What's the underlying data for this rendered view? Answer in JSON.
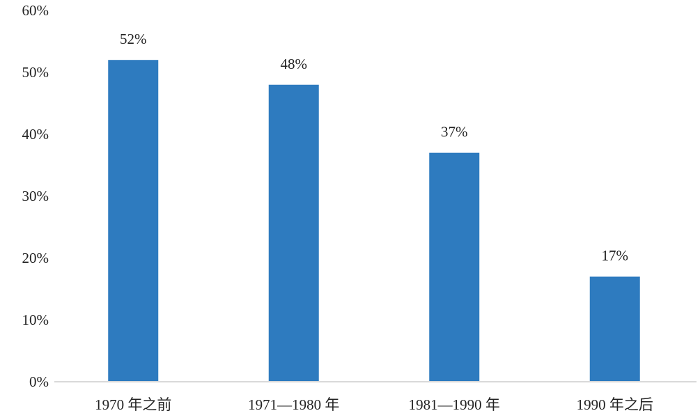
{
  "chart_data": {
    "type": "bar",
    "title": "",
    "xlabel": "",
    "ylabel": "",
    "categories": [
      "1970 年之前",
      "1971—1980 年",
      "1981—1990 年",
      "1990 年之后"
    ],
    "values": [
      52,
      48,
      37,
      17
    ],
    "data_labels": [
      "52%",
      "48%",
      "37%",
      "17%"
    ],
    "y_ticks": [
      0,
      10,
      20,
      30,
      40,
      50,
      60
    ],
    "y_tick_labels": [
      "0%",
      "10%",
      "20%",
      "30%",
      "40%",
      "50%",
      "60%"
    ],
    "ylim": [
      0,
      60
    ],
    "grid": false,
    "legend": "none",
    "colors": {
      "bar": "#2E7BBF",
      "axis": "#d9d9d9",
      "text": "#222222"
    }
  }
}
